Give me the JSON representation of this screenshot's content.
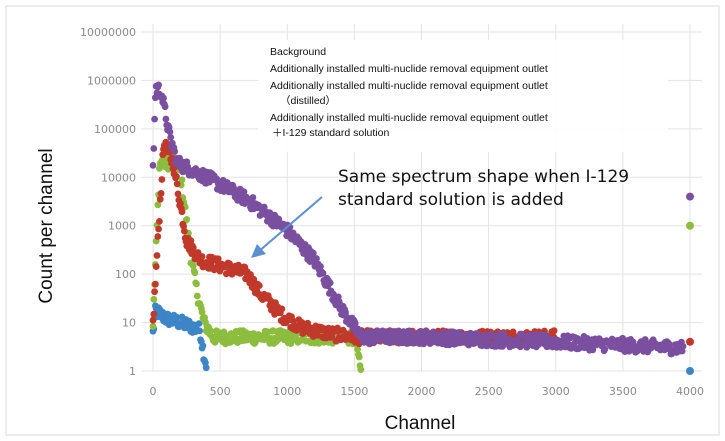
{
  "chart_data": {
    "type": "scatter",
    "title": "",
    "xlabel": "Channel",
    "ylabel": "Count per channel",
    "xlim": [
      0,
      4000
    ],
    "ylim": [
      1,
      10000000
    ],
    "yscale": "log",
    "grid": true,
    "x_ticks": [
      "0",
      "500",
      "1000",
      "1500",
      "2000",
      "2500",
      "3000",
      "3500",
      "4000"
    ],
    "y_ticks": [
      "1",
      "10",
      "100",
      "1000",
      "10000",
      "100000",
      "1000000",
      "10000000"
    ],
    "legend": {
      "placement": "top-right",
      "lines": [
        "Background",
        "Additionally installed multi-nuclide removal equipment outlet",
        "Additionally installed multi-nuclide removal equipment outlet",
        "（distilled）",
        "Additionally installed multi-nuclide removal equipment outlet",
        "＋I-129 standard solution"
      ]
    },
    "annotation": {
      "lines": [
        "Same spectrum shape when I-129",
        "standard solution is added"
      ],
      "arrow_color": "#5b8fd0"
    },
    "series": [
      {
        "color": "#3d85c6",
        "points": [
          [
            0,
            6
          ],
          [
            20,
            18
          ],
          [
            50,
            15
          ],
          [
            100,
            12
          ],
          [
            150,
            11
          ],
          [
            200,
            10
          ],
          [
            250,
            9
          ],
          [
            300,
            8
          ],
          [
            350,
            7
          ],
          [
            400,
            1
          ],
          [
            4000,
            1
          ]
        ]
      },
      {
        "color": "#8cbd3f",
        "points": [
          [
            0,
            10
          ],
          [
            50,
            20000
          ],
          [
            150,
            20000
          ],
          [
            200,
            15000
          ],
          [
            240,
            2000
          ],
          [
            280,
            250
          ],
          [
            330,
            40
          ],
          [
            380,
            10
          ],
          [
            450,
            5
          ],
          [
            1000,
            5
          ],
          [
            1500,
            5
          ],
          [
            1550,
            1
          ],
          [
            4000,
            1000
          ]
        ]
      },
      {
        "color": "#c0392b",
        "points": [
          [
            0,
            10
          ],
          [
            80,
            50000
          ],
          [
            150,
            20000
          ],
          [
            250,
            500
          ],
          [
            350,
            200
          ],
          [
            500,
            150
          ],
          [
            700,
            100
          ],
          [
            800,
            40
          ],
          [
            950,
            15
          ],
          [
            1100,
            8
          ],
          [
            1300,
            6
          ],
          [
            1500,
            5
          ],
          [
            2000,
            5
          ],
          [
            3000,
            5
          ],
          [
            4000,
            4
          ]
        ]
      },
      {
        "color": "#7b4fa0",
        "points": [
          [
            0,
            15000
          ],
          [
            20,
            700000
          ],
          [
            60,
            600000
          ],
          [
            120,
            80000
          ],
          [
            180,
            20000
          ],
          [
            400,
            10000
          ],
          [
            700,
            3500
          ],
          [
            1000,
            800
          ],
          [
            1200,
            200
          ],
          [
            1400,
            20
          ],
          [
            1550,
            5
          ],
          [
            2000,
            5
          ],
          [
            3000,
            4
          ],
          [
            3950,
            3
          ],
          [
            4000,
            4000
          ]
        ]
      }
    ]
  }
}
